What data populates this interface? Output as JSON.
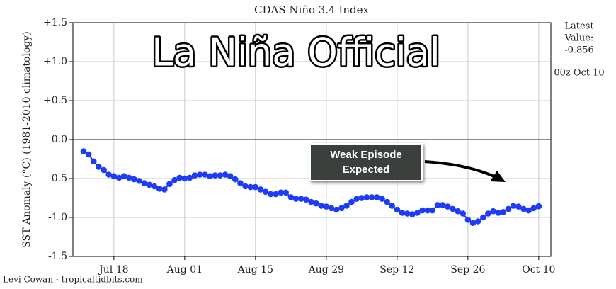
{
  "chart_data": {
    "type": "line",
    "title": "CDAS Niño 3.4 Index",
    "ylabel": "SST Anomaly (°C) (1981-2010 climatology)",
    "latest_label": [
      "Latest",
      "Value:"
    ],
    "latest_value": -0.856,
    "latest_time": "00z Oct 10",
    "credit": "Levi Cowan - tropicaltidbits.com",
    "headline": "La Niña Official",
    "callout": [
      "Weak Episode",
      "Expected"
    ],
    "categories": [
      null,
      null,
      null,
      null,
      null,
      null,
      "Jul 18",
      null,
      null,
      null,
      null,
      null,
      null,
      null,
      null,
      null,
      null,
      null,
      null,
      null,
      "Aug 01",
      null,
      null,
      null,
      null,
      null,
      null,
      null,
      null,
      null,
      null,
      null,
      null,
      null,
      "Aug 15",
      null,
      null,
      null,
      null,
      null,
      null,
      null,
      null,
      null,
      null,
      null,
      null,
      null,
      "Aug 29",
      null,
      null,
      null,
      null,
      null,
      null,
      null,
      null,
      null,
      null,
      null,
      null,
      null,
      "Sep 12",
      null,
      null,
      null,
      null,
      null,
      null,
      null,
      null,
      null,
      null,
      null,
      null,
      null,
      "Sep 26",
      null,
      null,
      null,
      null,
      null,
      null,
      null,
      null,
      null,
      null,
      null,
      null,
      null,
      "Oct 10"
    ],
    "series": [
      {
        "color": "#1f3cf5",
        "values": [
          -0.15,
          -0.19,
          -0.28,
          -0.35,
          -0.39,
          -0.45,
          -0.47,
          -0.49,
          -0.47,
          -0.49,
          -0.51,
          -0.53,
          -0.56,
          -0.58,
          -0.6,
          -0.63,
          -0.64,
          -0.57,
          -0.52,
          -0.49,
          -0.5,
          -0.49,
          -0.46,
          -0.45,
          -0.45,
          -0.47,
          -0.46,
          -0.46,
          -0.45,
          -0.47,
          -0.51,
          -0.56,
          -0.6,
          -0.61,
          -0.61,
          -0.64,
          -0.67,
          -0.7,
          -0.7,
          -0.68,
          -0.68,
          -0.74,
          -0.76,
          -0.76,
          -0.77,
          -0.8,
          -0.82,
          -0.85,
          -0.86,
          -0.88,
          -0.9,
          -0.88,
          -0.85,
          -0.8,
          -0.76,
          -0.75,
          -0.74,
          -0.74,
          -0.74,
          -0.76,
          -0.8,
          -0.85,
          -0.9,
          -0.94,
          -0.95,
          -0.96,
          -0.94,
          -0.91,
          -0.91,
          -0.91,
          -0.84,
          -0.84,
          -0.86,
          -0.89,
          -0.92,
          -0.95,
          -1.03,
          -1.07,
          -1.05,
          -1.0,
          -0.95,
          -0.92,
          -0.94,
          -0.93,
          -0.89,
          -0.85,
          -0.86,
          -0.89,
          -0.91,
          -0.88,
          -0.856
        ]
      }
    ],
    "ylim": [
      -1.5,
      1.5
    ],
    "yticks": [
      {
        "value": 1.5,
        "label": "+1.5"
      },
      {
        "value": 1.0,
        "label": "+1.0"
      },
      {
        "value": 0.5,
        "label": "+0.5"
      },
      {
        "value": 0,
        "label": "0.0"
      },
      {
        "value": -0.5,
        "label": "-0.5"
      },
      {
        "value": -1.0,
        "label": "-1.0"
      },
      {
        "value": -1.5,
        "label": "-1.5"
      }
    ],
    "grid": true
  }
}
